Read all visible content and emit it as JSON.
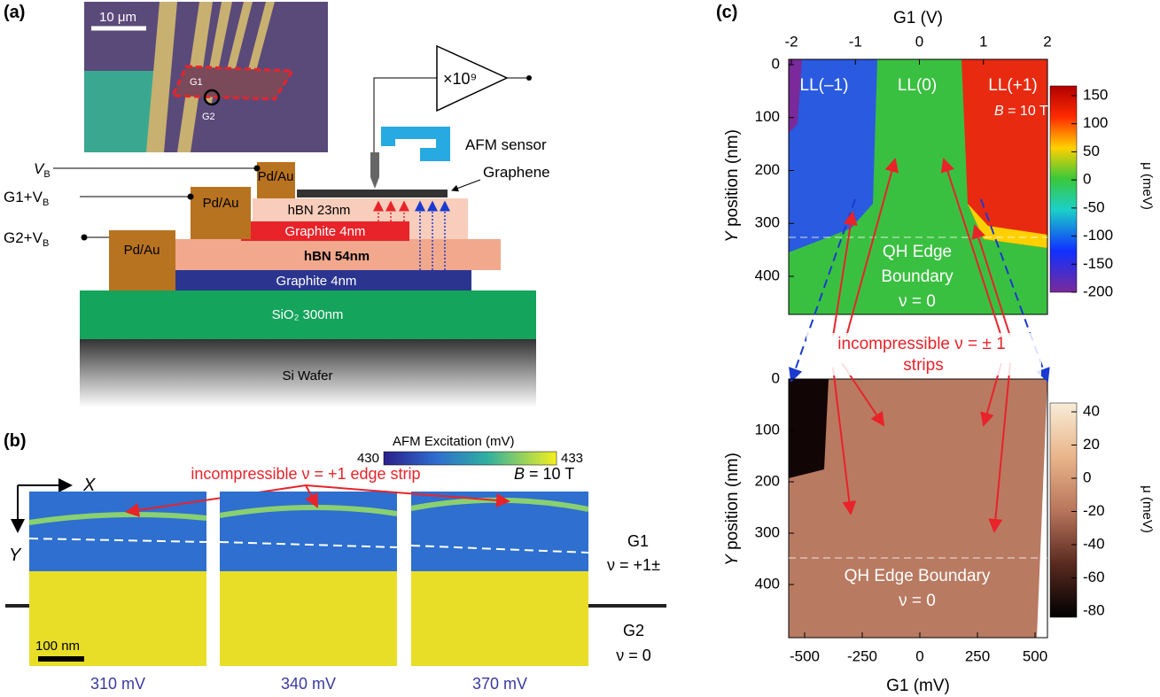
{
  "panel_labels": [
    "(a)",
    "(b)",
    "(c)"
  ],
  "panel_a": {
    "scale_bar": "10 μm",
    "gates": [
      "G1",
      "G2"
    ],
    "amplifier": "×10⁹",
    "afm_sensor": "AFM sensor",
    "graphene": "Graphene",
    "bias_labels": [
      {
        "text": "V",
        "sub": "B"
      },
      {
        "text": "G1+V",
        "sub": "B"
      },
      {
        "text": "G2+V",
        "sub": "B"
      }
    ],
    "layers": [
      "Pd/Au",
      "Pd/Au",
      "Pd/Au",
      "hBN 23nm",
      "Graphite 4nm",
      "hBN 54nm",
      "Graphite 4nm",
      "SiO₂ 300nm",
      "Si Wafer"
    ]
  },
  "panel_b": {
    "colorbar_title": "AFM Excitation (mV)",
    "colorbar_min": 430,
    "colorbar_max": 433,
    "annotation": "incompressible ν = +1 edge strip",
    "field_symbol": "B",
    "field_value": "= 10 T",
    "frames": [
      "310 mV",
      "340 mV",
      "370 mV"
    ],
    "axes": [
      "X",
      "Y"
    ],
    "scale_bar": "100 nm",
    "g1": [
      "G1",
      "ν = +1±"
    ],
    "g2": [
      "G2",
      "ν = 0"
    ]
  },
  "panel_c": {
    "top": {
      "xlabel": "G1 (V)",
      "xticks": [
        -2,
        -1,
        0,
        1,
        2
      ],
      "ylabel_symbol": "Y",
      "ylabel": " position (nm)",
      "yticks": [
        0,
        100,
        200,
        300,
        400
      ],
      "regions": [
        "LL(–1)",
        "LL(0)",
        "LL(+1)"
      ],
      "field_symbol": "B",
      "field_value": "= 10 T",
      "boundary": [
        "QH Edge",
        "Boundary",
        "ν = 0"
      ],
      "colorbar_label": "μ (meV)",
      "colorbar_ticks": [
        150,
        100,
        50,
        0,
        -50,
        -100,
        -150,
        -200
      ]
    },
    "annotation": [
      "incompressible ν = ± 1",
      "strips"
    ],
    "bottom": {
      "xlabel": "G1 (mV)",
      "xticks": [
        -500,
        -250,
        0,
        250,
        500
      ],
      "ylabel_symbol": "Y",
      "ylabel": " position (nm)",
      "yticks": [
        0,
        100,
        200,
        300,
        400
      ],
      "boundary": [
        "QH Edge Boundary",
        "ν = 0"
      ],
      "colorbar_label": "μ (meV)",
      "colorbar_ticks": [
        40,
        20,
        0,
        -20,
        -40,
        -60,
        -80
      ]
    }
  }
}
